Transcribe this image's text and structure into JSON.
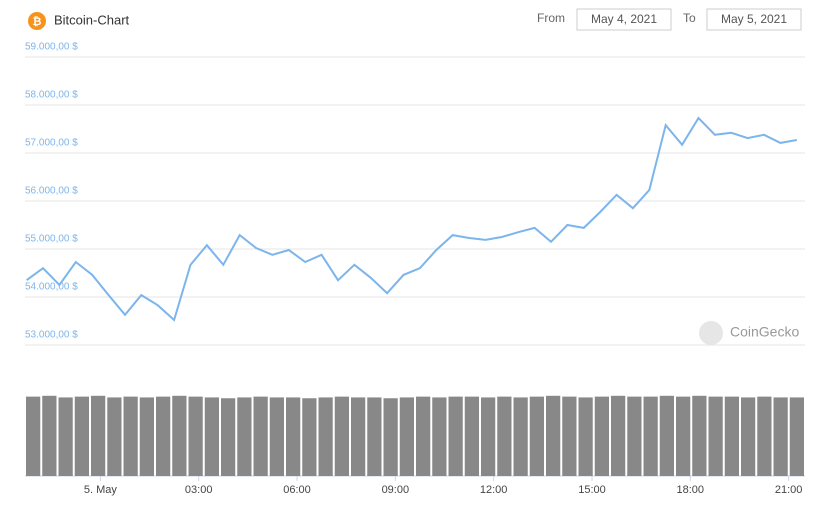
{
  "header": {
    "title": "Bitcoin-Chart",
    "from_label": "From",
    "from_date": "May 4, 2021",
    "to_label": "To",
    "to_date": "May 5, 2021",
    "watermark": "CoinGecko"
  },
  "chart_data": [
    {
      "type": "line",
      "x": [
        -2.25,
        -1.75,
        -1.25,
        -0.75,
        -0.25,
        0.25,
        0.75,
        1.25,
        1.75,
        2.25,
        2.75,
        3.25,
        3.75,
        4.25,
        4.75,
        5.25,
        5.75,
        6.25,
        6.75,
        7.25,
        7.75,
        8.25,
        8.75,
        9.25,
        9.75,
        10.25,
        10.75,
        11.25,
        11.75,
        12.25,
        12.75,
        13.25,
        13.75,
        14.25,
        14.75,
        15.25,
        15.75,
        16.25,
        16.75,
        17.25,
        17.75,
        18.25,
        18.75,
        19.25,
        19.75,
        20.25,
        20.75,
        21.25
      ],
      "series": [
        {
          "color": "#7cb5ec",
          "values": [
            54350,
            54600,
            54250,
            54730,
            54460,
            54040,
            53630,
            54040,
            53830,
            53520,
            54670,
            55080,
            54670,
            55290,
            55020,
            54880,
            54980,
            54730,
            54880,
            54350,
            54670,
            54400,
            54080,
            54460,
            54600,
            54980,
            55290,
            55230,
            55190,
            55250,
            55350,
            55440,
            55150,
            55500,
            55440,
            55770,
            56130,
            55850,
            56230,
            57580,
            57170,
            57730,
            57380,
            57420,
            57310,
            57380,
            57210,
            57270
          ]
        }
      ],
      "xlim": [
        -2.3,
        21.5
      ],
      "xticks": [
        {
          "value": 0,
          "label": "5. May"
        },
        {
          "value": 3,
          "label": "03:00"
        },
        {
          "value": 6,
          "label": "06:00"
        },
        {
          "value": 9,
          "label": "09:00"
        },
        {
          "value": 12,
          "label": "12:00"
        },
        {
          "value": 15,
          "label": "15:00"
        },
        {
          "value": 18,
          "label": "18:00"
        },
        {
          "value": 21,
          "label": "21:00"
        }
      ],
      "ylim": [
        53000,
        59000
      ],
      "yticks": [
        {
          "value": 53000,
          "label": "53.000,00 $"
        },
        {
          "value": 54000,
          "label": "54.000,00 $"
        },
        {
          "value": 55000,
          "label": "55.000,00 $"
        },
        {
          "value": 56000,
          "label": "56.000,00 $"
        },
        {
          "value": 57000,
          "label": "57.000,00 $"
        },
        {
          "value": 58000,
          "label": "58.000,00 $"
        },
        {
          "value": 59000,
          "label": "59.000,00 $"
        }
      ],
      "grid": true
    },
    {
      "type": "bar",
      "color": "#888888",
      "values": [
        98,
        99,
        97,
        98,
        99,
        97,
        98,
        97,
        98,
        99,
        98,
        97,
        96,
        97,
        98,
        97,
        97,
        96,
        97,
        98,
        97,
        97,
        96,
        97,
        98,
        97,
        98,
        98,
        97,
        98,
        97,
        98,
        99,
        98,
        97,
        98,
        99,
        98,
        98,
        99,
        98,
        99,
        98,
        98,
        97,
        98,
        97,
        97
      ],
      "ylim": [
        0,
        100
      ]
    }
  ]
}
